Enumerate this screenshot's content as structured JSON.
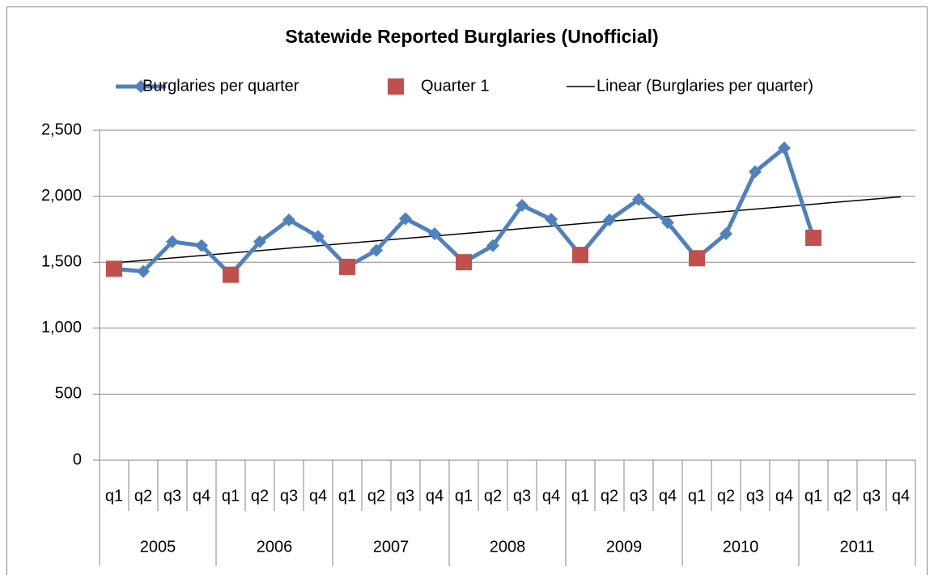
{
  "chart_data": {
    "type": "line",
    "title": "Statewide Reported Burglaries (Unofficial)",
    "categories": [
      "q1",
      "q2",
      "q3",
      "q4",
      "q1",
      "q2",
      "q3",
      "q4",
      "q1",
      "q2",
      "q3",
      "q4",
      "q1",
      "q2",
      "q3",
      "q4",
      "q1",
      "q2",
      "q3",
      "q4",
      "q1",
      "q2",
      "q3",
      "q4",
      "q1",
      "q2",
      "q3",
      "q4"
    ],
    "category_groups": [
      "2005",
      "2006",
      "2007",
      "2008",
      "2009",
      "2010",
      "2011"
    ],
    "series": [
      {
        "name": "Burglaries per quarter",
        "color": "#4f81bd",
        "marker": "diamond",
        "values": [
          1450,
          1430,
          1655,
          1625,
          1405,
          1655,
          1820,
          1695,
          1465,
          1590,
          1830,
          1715,
          1500,
          1625,
          1930,
          1825,
          1555,
          1820,
          1975,
          1800,
          1530,
          1715,
          2185,
          2365,
          1685,
          null,
          null,
          null
        ]
      },
      {
        "name": "Quarter 1",
        "color": "#c0504d",
        "marker": "square",
        "line": false,
        "values": [
          1450,
          null,
          null,
          null,
          1405,
          null,
          null,
          null,
          1465,
          null,
          null,
          null,
          1500,
          null,
          null,
          null,
          1555,
          null,
          null,
          null,
          1530,
          null,
          null,
          null,
          1685,
          null,
          null,
          null
        ]
      }
    ],
    "trendline": {
      "name": "Linear (Burglaries per quarter)",
      "color": "#000000",
      "start": 1495,
      "end": 1995
    },
    "ylim": [
      0,
      2500
    ],
    "yticks": [
      0,
      500,
      {
        "value": 1000,
        "label": "1,000"
      },
      {
        "value": 1500,
        "label": "1,500"
      },
      {
        "value": 2000,
        "label": "2,000"
      },
      {
        "value": 2500,
        "label": "2,500"
      }
    ],
    "grid": true,
    "legend": "top"
  }
}
